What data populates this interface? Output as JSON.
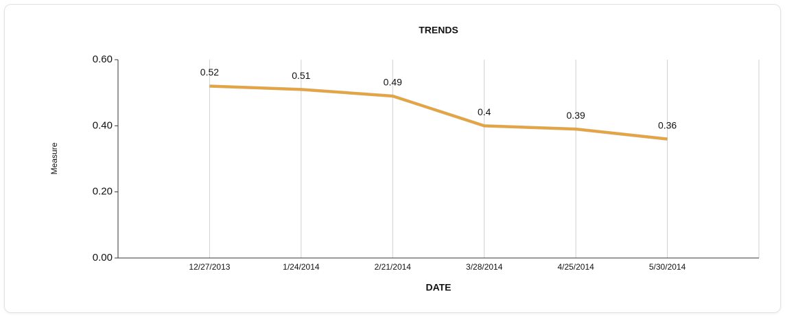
{
  "chart_data": {
    "type": "line",
    "title": "TRENDS",
    "x_label": "DATE",
    "y_label": "Measure",
    "categories": [
      "12/27/2013",
      "1/24/2014",
      "2/21/2014",
      "3/28/2014",
      "4/25/2014",
      "5/30/2014"
    ],
    "series": [
      {
        "name": "Measure",
        "color": "#e8a33a",
        "values": [
          0.52,
          0.51,
          0.49,
          0.4,
          0.39,
          0.36
        ]
      }
    ],
    "ylim": [
      0,
      0.6
    ],
    "yticks": [
      {
        "value": 0,
        "label": "0.00"
      },
      {
        "value": 0.2,
        "label": "0.20"
      },
      {
        "value": 0.4,
        "label": "0.40"
      },
      {
        "value": 0.6,
        "label": "0.60"
      }
    ],
    "grid": true,
    "data_labels": true
  }
}
